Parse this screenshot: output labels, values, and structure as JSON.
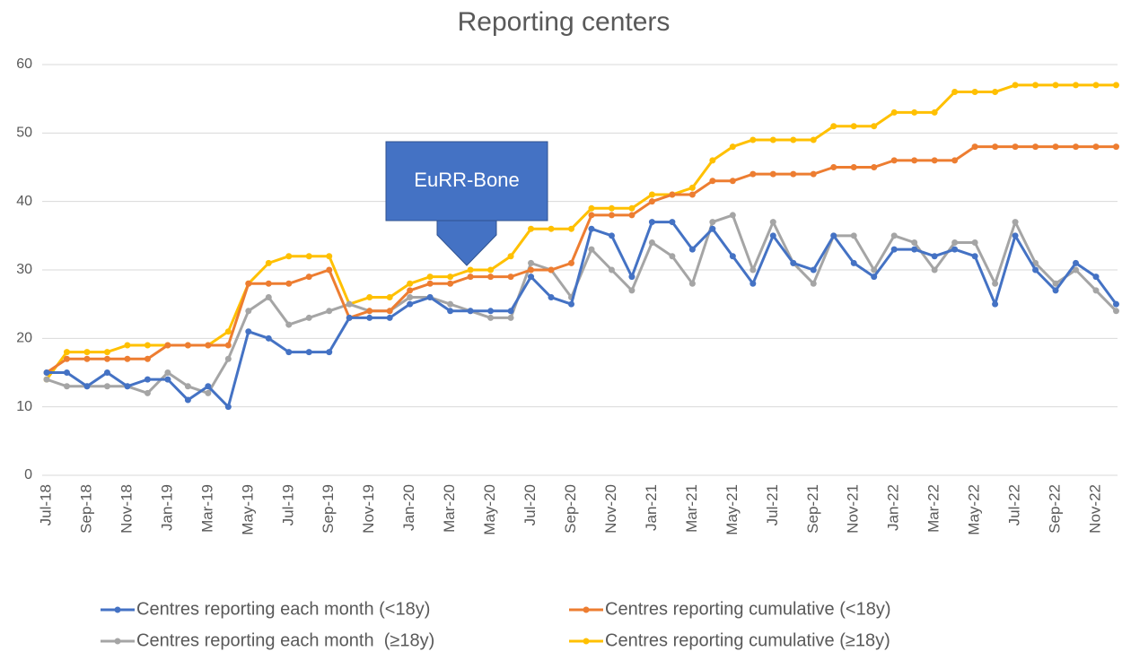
{
  "chart_data": {
    "type": "line",
    "title": "Reporting centers",
    "annotation": "EuRR-Bone",
    "categories": [
      "Jul-18",
      null,
      "Sep-18",
      null,
      "Nov-18",
      null,
      "Jan-19",
      null,
      "Mar-19",
      null,
      "May-19",
      null,
      "Jul-19",
      null,
      "Sep-19",
      null,
      "Nov-19",
      null,
      "Jan-20",
      null,
      "Mar-20",
      null,
      "May-20",
      null,
      "Jul-20",
      null,
      "Sep-20",
      null,
      "Nov-20",
      null,
      "Jan-21",
      null,
      "Mar-21",
      null,
      "May-21",
      null,
      "Jul-21",
      null,
      "Sep-21",
      null,
      "Nov-21",
      null,
      "Jan-22",
      null,
      "Mar-22",
      null,
      "May-22",
      null,
      "Jul-22",
      null,
      "Sep-22",
      null,
      "Nov-22",
      null
    ],
    "series": [
      {
        "name": "Centres reporting each month (<18y)",
        "color": "#4472c4",
        "values": [
          15,
          15,
          13,
          15,
          13,
          14,
          14,
          11,
          13,
          10,
          21,
          20,
          18,
          18,
          18,
          23,
          23,
          23,
          25,
          26,
          24,
          24,
          24,
          24,
          29,
          26,
          25,
          36,
          35,
          29,
          37,
          37,
          33,
          36,
          32,
          28,
          35,
          31,
          30,
          35,
          31,
          29,
          33,
          33,
          32,
          33,
          32,
          25,
          35,
          30,
          27,
          31,
          29,
          25
        ]
      },
      {
        "name": "Centres reporting cumulative (<18y)",
        "color": "#ed7d31",
        "values": [
          15,
          17,
          17,
          17,
          17,
          17,
          19,
          19,
          19,
          19,
          28,
          28,
          28,
          29,
          30,
          23,
          24,
          24,
          27,
          28,
          28,
          29,
          29,
          29,
          30,
          30,
          31,
          38,
          38,
          38,
          40,
          41,
          41,
          43,
          43,
          44,
          44,
          44,
          44,
          45,
          45,
          45,
          46,
          46,
          46,
          46,
          48,
          48,
          48,
          48,
          48,
          48,
          48,
          48
        ]
      },
      {
        "name": "Centres reporting each month  (≥18y)",
        "color": "#a5a5a5",
        "values": [
          14,
          13,
          13,
          13,
          13,
          12,
          15,
          13,
          12,
          17,
          24,
          26,
          22,
          23,
          24,
          25,
          24,
          24,
          26,
          26,
          25,
          24,
          23,
          23,
          31,
          30,
          26,
          33,
          30,
          27,
          34,
          32,
          28,
          37,
          38,
          30,
          37,
          31,
          28,
          35,
          35,
          30,
          35,
          34,
          30,
          34,
          34,
          28,
          37,
          31,
          28,
          30,
          27,
          24
        ]
      },
      {
        "name": "Centres reporting cumulative (≥18y)",
        "color": "#ffc000",
        "values": [
          14,
          18,
          18,
          18,
          19,
          19,
          19,
          19,
          19,
          21,
          28,
          31,
          32,
          32,
          32,
          25,
          26,
          26,
          28,
          29,
          29,
          30,
          30,
          32,
          36,
          36,
          36,
          39,
          39,
          39,
          41,
          41,
          42,
          46,
          48,
          49,
          49,
          49,
          49,
          51,
          51,
          51,
          53,
          53,
          53,
          56,
          56,
          56,
          57,
          57,
          57,
          57,
          57,
          57
        ]
      }
    ],
    "ylim": [
      0,
      60
    ],
    "yticks": [
      0,
      10,
      20,
      30,
      40,
      50,
      60
    ],
    "grid": true
  }
}
